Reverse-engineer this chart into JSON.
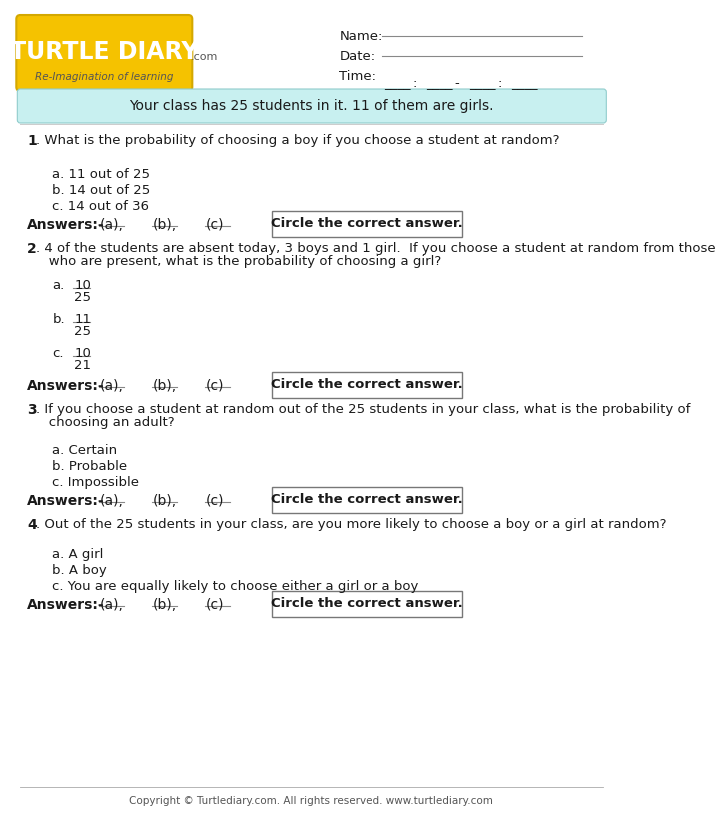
{
  "bg_color": "#ffffff",
  "header_bg": "#c8f0f0",
  "header_text": "Your class has 25 students in it. 11 of them are girls.",
  "logo_color": "#f5c200",
  "logo_text": "TURTLE DIARY",
  "logo_tagline": "Re-Imagination of learning",
  "name_label": "Name:",
  "date_label": "Date:",
  "time_label": "Time:",
  "q1_num": "1",
  "q1_text": ". What is the probability of choosing a boy if you choose a student at random?",
  "q1_opts": [
    "a. 11 out of 25",
    "b. 14 out of 25",
    "c. 14 out of 36"
  ],
  "q2_num": "2",
  "q2_line1": ". 4 of the students are absent today, 3 boys and 1 girl.  If you choose a student at random from those",
  "q2_line2": "   who are present, what is the probability of choosing a girl?",
  "q2_opts_num": [
    "10",
    "11",
    "10"
  ],
  "q2_opts_den": [
    "25",
    "25",
    "21"
  ],
  "q2_labels": [
    "a.",
    "b.",
    "c."
  ],
  "q3_num": "3",
  "q3_line1": ". If you choose a student at random out of the 25 students in your class, what is the probability of",
  "q3_line2": "   choosing an adult?",
  "q3_opts": [
    "a. Certain",
    "b. Probable",
    "c. Impossible"
  ],
  "q4_num": "4",
  "q4_text": ". Out of the 25 students in your class, are you more likely to choose a boy or a girl at random?",
  "q4_opts": [
    "a. A girl",
    "b. A boy",
    "c. You are equally likely to choose either a girl or a boy"
  ],
  "ans_label": "Answers:-",
  "ans_abc": [
    "(a),",
    "(b),",
    "(c)"
  ],
  "circle_text": "Circle the correct answer.",
  "copyright": "Copyright © Turtlediary.com. All rights reserved. www.turtlediary.com",
  "text_dark": "#1a1a1a",
  "text_gray": "#555555",
  "box_edge": "#777777",
  "line_color": "#888888",
  "footer_line": "#aaaaaa"
}
